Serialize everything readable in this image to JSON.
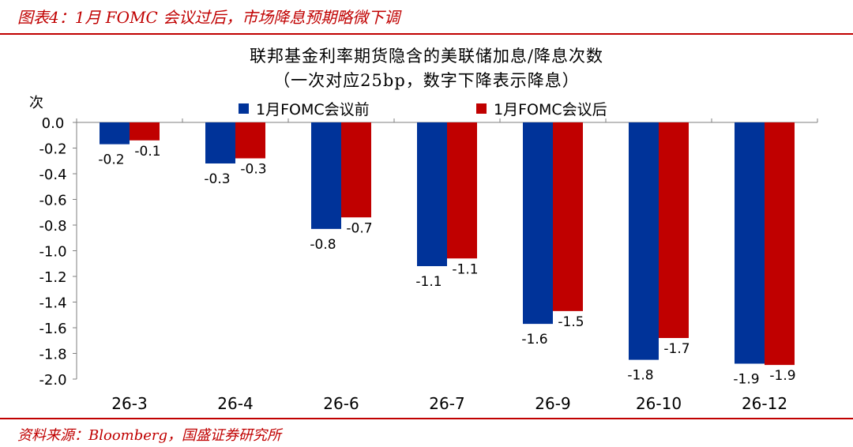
{
  "header": {
    "title": "图表4：1月 FOMC 会议过后，市场降息预期略微下调",
    "source": "资料来源：Bloomberg，国盛证券研究所"
  },
  "chart_data": {
    "type": "bar",
    "title": "联邦基金利率期货隐含的美联储加息/降息次数",
    "subtitle": "（一次对应25bp，数字下降表示降息）",
    "ylabel": "次",
    "xlabel": "",
    "categories": [
      "26-3",
      "26-4",
      "26-6",
      "26-7",
      "26-9",
      "26-10",
      "26-12"
    ],
    "series": [
      {
        "name": "1月FOMC会议前",
        "color": "#003399",
        "values": [
          -0.17,
          -0.32,
          -0.83,
          -1.12,
          -1.57,
          -1.85,
          -1.88
        ],
        "labels": [
          "-0.2",
          "-0.3",
          "-0.8",
          "-1.1",
          "-1.6",
          "-1.8",
          "-1.9"
        ]
      },
      {
        "name": "1月FOMC会议后",
        "color": "#c00000",
        "values": [
          -0.14,
          -0.28,
          -0.74,
          -1.06,
          -1.47,
          -1.68,
          -1.89
        ],
        "labels": [
          "-0.1",
          "-0.3",
          "-0.7",
          "-1.1",
          "-1.5",
          "-1.7",
          "-1.9"
        ]
      }
    ],
    "ylim": [
      -2.0,
      0.0
    ],
    "yticks": [
      "0.0",
      "-0.2",
      "-0.4",
      "-0.6",
      "-0.8",
      "-1.0",
      "-1.2",
      "-1.4",
      "-1.6",
      "-1.8",
      "-2.0"
    ],
    "grid": false,
    "legend_position": "top"
  }
}
